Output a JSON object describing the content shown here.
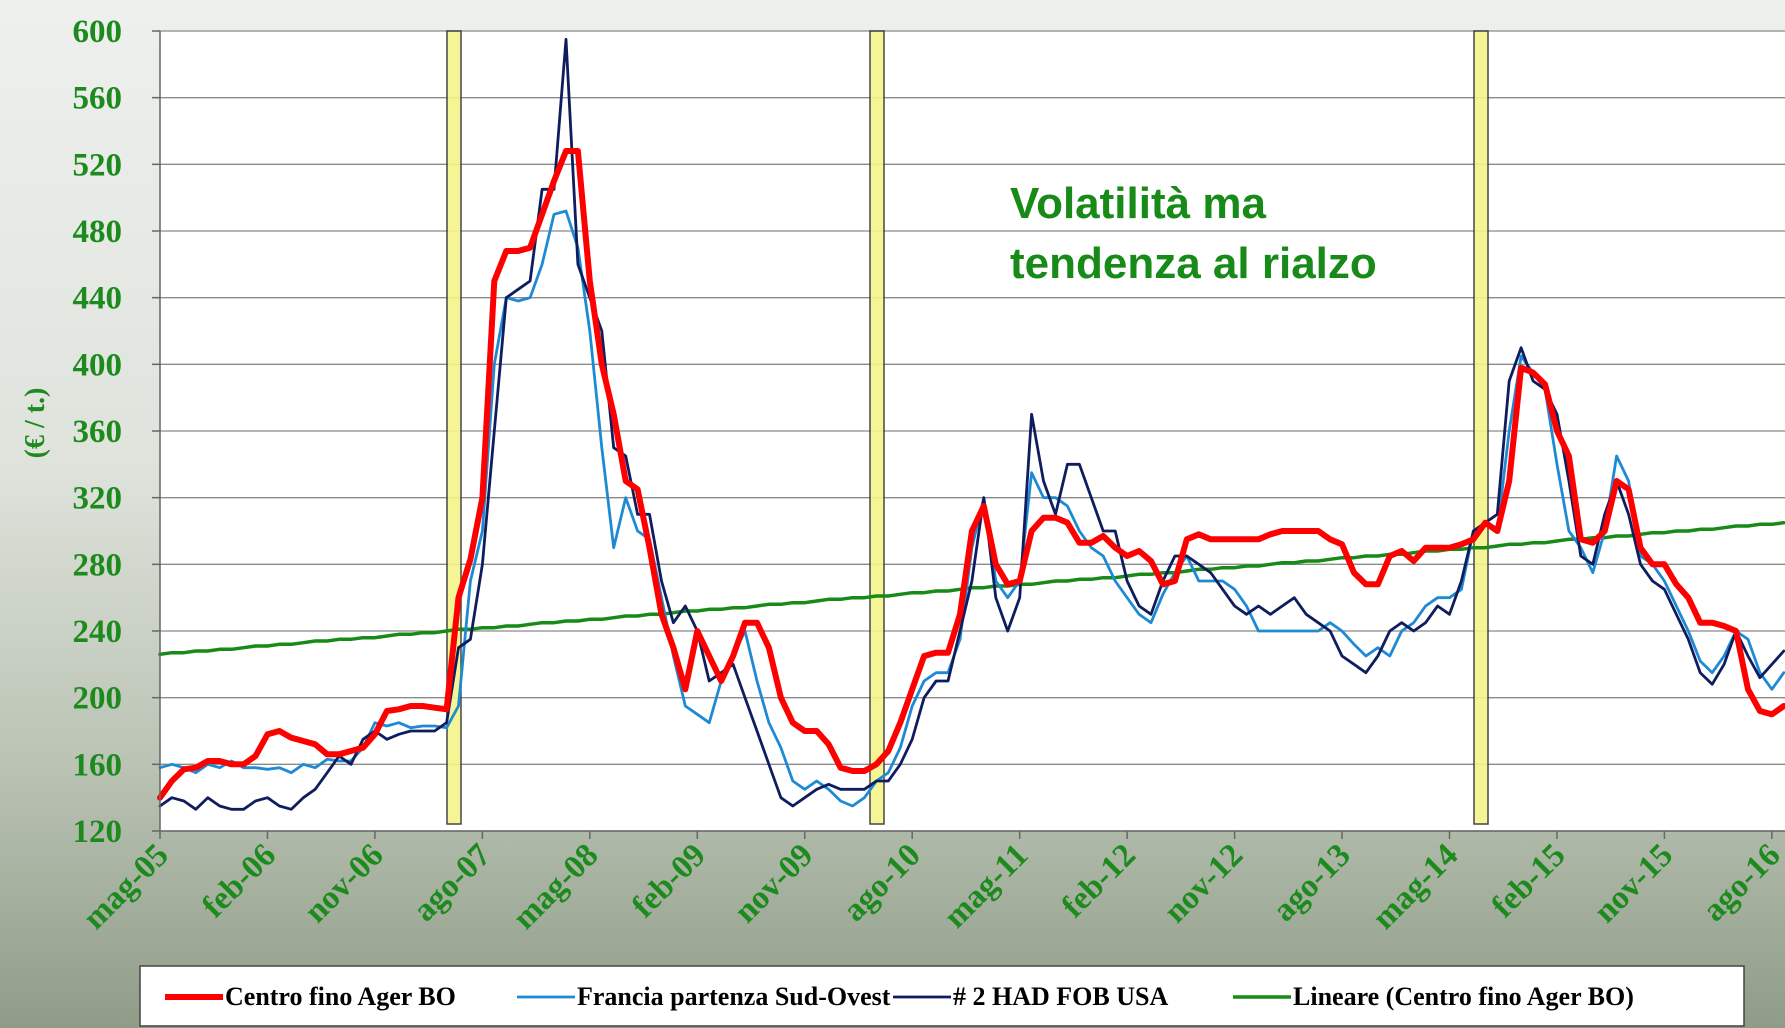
{
  "chart_data": {
    "type": "line",
    "y_label": "(€ / t.)",
    "annotation": [
      "Volatilità ma",
      "tendenza al rialzo"
    ],
    "ylim": [
      120,
      600
    ],
    "yticks": [
      120,
      160,
      200,
      240,
      280,
      320,
      360,
      400,
      440,
      480,
      520,
      560,
      600
    ],
    "grid": true,
    "legend": "bottom",
    "categories": [
      "mag-05",
      null,
      null,
      null,
      null,
      null,
      null,
      null,
      null,
      "feb-06",
      null,
      null,
      null,
      null,
      null,
      null,
      null,
      null,
      "nov-06",
      null,
      null,
      null,
      null,
      null,
      null,
      null,
      null,
      "ago-07",
      null,
      null,
      null,
      null,
      null,
      null,
      null,
      null,
      "mag-08",
      null,
      null,
      null,
      null,
      null,
      null,
      null,
      null,
      "feb-09",
      null,
      null,
      null,
      null,
      null,
      null,
      null,
      null,
      "nov-09",
      null,
      null,
      null,
      null,
      null,
      null,
      null,
      null,
      "ago-10",
      null,
      null,
      null,
      null,
      null,
      null,
      null,
      null,
      "mag-11",
      null,
      null,
      null,
      null,
      null,
      null,
      null,
      null,
      "feb-12",
      null,
      null,
      null,
      null,
      null,
      null,
      null,
      null,
      "nov-12",
      null,
      null,
      null,
      null,
      null,
      null,
      null,
      null,
      "ago-13",
      null,
      null,
      null,
      null,
      null,
      null,
      null,
      null,
      "mag-14",
      null,
      null,
      null,
      null,
      null,
      null,
      null,
      null,
      "feb-15",
      null,
      null,
      null,
      null,
      null,
      null,
      null,
      null,
      "nov-15",
      null,
      null,
      null,
      null,
      null,
      null,
      null,
      null,
      "ago-16",
      null
    ],
    "series": [
      {
        "name": "Centro fino Ager BO",
        "color": "#ff0000",
        "width": 6,
        "values": [
          140,
          150,
          157,
          158,
          162,
          162,
          160,
          160,
          165,
          178,
          180,
          176,
          174,
          172,
          166,
          166,
          168,
          170,
          178,
          192,
          193,
          195,
          195,
          194,
          193,
          260,
          283,
          320,
          450,
          468,
          468,
          470,
          490,
          510,
          528,
          528,
          450,
          400,
          370,
          330,
          325,
          290,
          250,
          230,
          205,
          240,
          225,
          210,
          225,
          245,
          245,
          230,
          200,
          185,
          180,
          180,
          172,
          158,
          156,
          156,
          160,
          168,
          185,
          205,
          225,
          227,
          227,
          250,
          300,
          315,
          280,
          268,
          270,
          300,
          308,
          308,
          305,
          293,
          293,
          297,
          290,
          285,
          288,
          282,
          268,
          270,
          295,
          298,
          295,
          295,
          295,
          295,
          295,
          298,
          300,
          300,
          300,
          300,
          295,
          292,
          275,
          268,
          268,
          285,
          288,
          282,
          290,
          290,
          290,
          292,
          295,
          305,
          300,
          330,
          398,
          395,
          388,
          360,
          345,
          295,
          293,
          300,
          330,
          325,
          290,
          280,
          280,
          268,
          260,
          245,
          245,
          243,
          240,
          205,
          192,
          190,
          195
        ]
      },
      {
        "name": "Francia partenza Sud-Ovest",
        "color": "#1f8ad4",
        "width": 2.8,
        "values": [
          158,
          160,
          158,
          155,
          160,
          158,
          162,
          158,
          158,
          157,
          158,
          155,
          160,
          158,
          163,
          162,
          162,
          170,
          185,
          183,
          185,
          182,
          183,
          183,
          182,
          195,
          270,
          300,
          400,
          440,
          438,
          440,
          460,
          490,
          492,
          470,
          420,
          350,
          290,
          320,
          300,
          295,
          260,
          225,
          195,
          190,
          185,
          210,
          225,
          240,
          210,
          185,
          170,
          150,
          145,
          150,
          145,
          138,
          135,
          140,
          150,
          155,
          170,
          195,
          210,
          215,
          215,
          235,
          290,
          320,
          270,
          260,
          270,
          335,
          320,
          320,
          315,
          300,
          290,
          285,
          270,
          260,
          250,
          245,
          262,
          275,
          285,
          270,
          270,
          270,
          265,
          255,
          240,
          240,
          240,
          240,
          240,
          240,
          245,
          240,
          232,
          225,
          230,
          225,
          240,
          245,
          255,
          260,
          260,
          265,
          300,
          305,
          300,
          360,
          405,
          395,
          385,
          340,
          300,
          290,
          275,
          300,
          345,
          330,
          285,
          280,
          270,
          255,
          240,
          222,
          215,
          225,
          240,
          235,
          215,
          205,
          215
        ]
      },
      {
        "name": "# 2 HAD FOB USA",
        "color": "#0f1d5e",
        "width": 2.8,
        "values": [
          135,
          140,
          138,
          133,
          140,
          135,
          133,
          133,
          138,
          140,
          135,
          133,
          140,
          145,
          155,
          165,
          160,
          175,
          180,
          175,
          178,
          180,
          180,
          180,
          185,
          230,
          235,
          280,
          360,
          440,
          445,
          450,
          505,
          505,
          595,
          460,
          440,
          420,
          350,
          345,
          310,
          310,
          270,
          245,
          255,
          240,
          210,
          215,
          220,
          200,
          180,
          160,
          140,
          135,
          140,
          145,
          148,
          145,
          145,
          145,
          150,
          150,
          160,
          175,
          200,
          210,
          210,
          240,
          270,
          320,
          260,
          240,
          260,
          370,
          330,
          310,
          340,
          340,
          320,
          300,
          300,
          270,
          255,
          250,
          270,
          285,
          285,
          280,
          275,
          265,
          255,
          250,
          255,
          250,
          255,
          260,
          250,
          245,
          240,
          225,
          220,
          215,
          225,
          240,
          245,
          240,
          245,
          255,
          250,
          270,
          300,
          305,
          310,
          390,
          410,
          390,
          385,
          370,
          330,
          285,
          280,
          310,
          330,
          310,
          280,
          270,
          265,
          250,
          235,
          215,
          208,
          220,
          240,
          225,
          212,
          220,
          228
        ]
      },
      {
        "name": "Lineare (Centro fino Ager BO)",
        "color": "#178a17",
        "width": 3.5,
        "values": [
          226,
          227,
          227,
          228,
          228,
          229,
          229,
          230,
          231,
          231,
          232,
          232,
          233,
          234,
          234,
          235,
          235,
          236,
          236,
          237,
          238,
          238,
          239,
          239,
          240,
          241,
          241,
          242,
          242,
          243,
          243,
          244,
          245,
          245,
          246,
          246,
          247,
          247,
          248,
          249,
          249,
          250,
          250,
          251,
          252,
          252,
          253,
          253,
          254,
          254,
          255,
          256,
          256,
          257,
          257,
          258,
          259,
          259,
          260,
          260,
          261,
          261,
          262,
          263,
          263,
          264,
          264,
          265,
          266,
          266,
          267,
          267,
          268,
          268,
          269,
          270,
          270,
          271,
          271,
          272,
          272,
          273,
          274,
          274,
          275,
          275,
          276,
          277,
          277,
          278,
          278,
          279,
          279,
          280,
          281,
          281,
          282,
          282,
          283,
          284,
          284,
          285,
          285,
          286,
          286,
          287,
          288,
          288,
          289,
          289,
          290,
          290,
          291,
          292,
          292,
          293,
          293,
          294,
          295,
          295,
          296,
          296,
          297,
          297,
          298,
          299,
          299,
          300,
          300,
          301,
          301,
          302,
          303,
          303,
          304,
          304,
          305
        ]
      }
    ]
  }
}
